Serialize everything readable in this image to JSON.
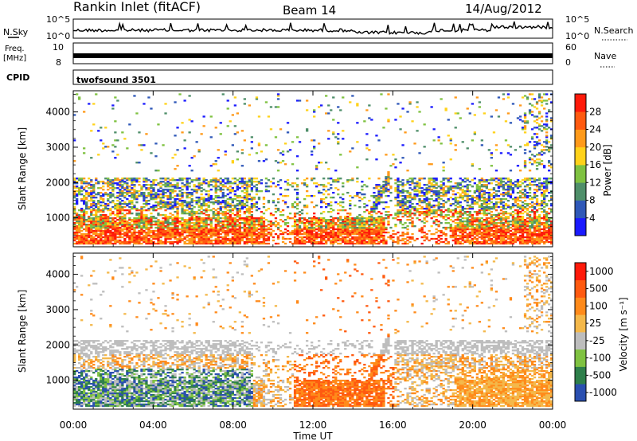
{
  "header": {
    "title": "Rankin Inlet (fitACF)",
    "beam": "Beam 14",
    "date": "14/Aug/2012"
  },
  "aux_panels": {
    "nsky_label": "N.Sky",
    "nsearch_label": "N.Search",
    "nsky_ticks": [
      "10^5",
      "10^0"
    ],
    "nsearch_ticks": [
      "10^5",
      "10^0"
    ],
    "freq_label_1": "Freq.",
    "freq_label_2": "[MHz]",
    "freq_ticks": [
      "10",
      "8"
    ],
    "nave_label": "Nave",
    "nave_ticks": [
      "60",
      "0"
    ],
    "cpid_label": "CPID",
    "cpid_value": "twofsound 3501"
  },
  "chart_data": [
    {
      "type": "heatmap",
      "name": "power",
      "ylabel": "Slant Range [km]",
      "y_ticks": [
        "1000",
        "2000",
        "3000",
        "4000"
      ],
      "y_tick_values": [
        1000,
        2000,
        3000,
        4000
      ],
      "ylim": [
        180,
        4600
      ],
      "xlim_hours": [
        0,
        24
      ],
      "colorbar": {
        "label": "Power [dB]",
        "ticks": [
          "4",
          "8",
          "12",
          "16",
          "20",
          "24",
          "28"
        ],
        "tick_values": [
          4,
          8,
          12,
          16,
          20,
          24,
          28
        ],
        "range": [
          0,
          32
        ],
        "colors": [
          "#1a1aff",
          "#2f58b8",
          "#4f8f6a",
          "#7fc241",
          "#ffd21a",
          "#ff9a1a",
          "#ff5a10",
          "#ff1a0a"
        ]
      }
    },
    {
      "type": "heatmap",
      "name": "velocity",
      "ylabel": "Slant Range [km]",
      "y_ticks": [
        "1000",
        "2000",
        "3000",
        "4000"
      ],
      "y_tick_values": [
        1000,
        2000,
        3000,
        4000
      ],
      "ylim": [
        180,
        4600
      ],
      "xlim_hours": [
        0,
        24
      ],
      "colorbar": {
        "label": "Velocity [m s⁻¹]",
        "ticks": [
          "1000",
          "500",
          "100",
          "25",
          "-25",
          "-100",
          "-500",
          "-1000"
        ],
        "colors": [
          "#2a4fb0",
          "#2e7f4a",
          "#7fc241",
          "#bdbdbd",
          "#f4b84a",
          "#ff8a1a",
          "#ff5a10",
          "#ff1a0a"
        ]
      }
    }
  ],
  "time_axis": {
    "label": "Time UT",
    "ticks": [
      "00:00",
      "04:00",
      "08:00",
      "12:00",
      "16:00",
      "20:00",
      "00:00"
    ],
    "tick_hours": [
      0,
      4,
      8,
      12,
      16,
      20,
      24
    ]
  }
}
